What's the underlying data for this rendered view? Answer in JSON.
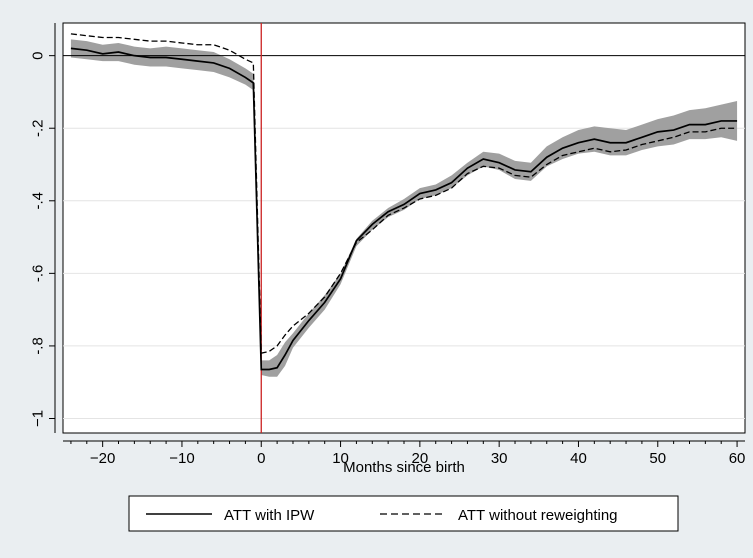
{
  "chart_data": {
    "type": "line",
    "title": "",
    "xlabel": "Months since birth",
    "ylabel": "",
    "xlim": [
      -25,
      61
    ],
    "ylim": [
      -1.04,
      0.09
    ],
    "xticks": [
      -20,
      -10,
      0,
      10,
      20,
      30,
      40,
      50,
      60
    ],
    "xtick_labels": [
      "−20",
      "−10",
      "0",
      "10",
      "20",
      "30",
      "40",
      "50",
      "60"
    ],
    "yticks": [
      0,
      -0.2,
      -0.4,
      -0.6,
      -0.8,
      -1
    ],
    "ytick_labels": [
      "0",
      "-.2",
      "-.4",
      "-.6",
      "-.8",
      "−1"
    ],
    "grid": "horizontal",
    "reference_lines": {
      "y": 0,
      "x": 0,
      "x_color": "#cc2222",
      "y_color": "#000000"
    },
    "legend": {
      "position": "bottom",
      "entries": [
        "ATT with IPW",
        "ATT without reweighting"
      ]
    },
    "colors": {
      "background": "#eaeef1",
      "plot_area": "#ffffff",
      "band": "#a0a0a0",
      "lines": "#000000"
    },
    "ci_band": {
      "x": [
        -24,
        -22,
        -20,
        -18,
        -16,
        -14,
        -12,
        -10,
        -8,
        -6,
        -4,
        -2,
        -1,
        0,
        1,
        2,
        3,
        4,
        6,
        8,
        10,
        12,
        14,
        16,
        18,
        20,
        22,
        24,
        26,
        28,
        30,
        32,
        34,
        36,
        38,
        40,
        42,
        44,
        46,
        48,
        50,
        52,
        54,
        56,
        58,
        60
      ],
      "upper": [
        0.045,
        0.04,
        0.03,
        0.035,
        0.025,
        0.02,
        0.025,
        0.02,
        0.015,
        0.01,
        -0.01,
        -0.035,
        -0.05,
        -0.84,
        -0.84,
        -0.825,
        -0.79,
        -0.765,
        -0.71,
        -0.66,
        -0.6,
        -0.505,
        -0.455,
        -0.42,
        -0.395,
        -0.365,
        -0.355,
        -0.33,
        -0.295,
        -0.265,
        -0.27,
        -0.29,
        -0.295,
        -0.25,
        -0.225,
        -0.205,
        -0.195,
        -0.2,
        -0.205,
        -0.19,
        -0.175,
        -0.165,
        -0.15,
        -0.145,
        -0.135,
        -0.125
      ],
      "lower": [
        -0.005,
        -0.01,
        -0.015,
        -0.015,
        -0.025,
        -0.03,
        -0.03,
        -0.035,
        -0.04,
        -0.045,
        -0.06,
        -0.08,
        -0.095,
        -0.88,
        -0.885,
        -0.885,
        -0.855,
        -0.805,
        -0.75,
        -0.7,
        -0.63,
        -0.525,
        -0.48,
        -0.445,
        -0.425,
        -0.395,
        -0.385,
        -0.365,
        -0.33,
        -0.305,
        -0.315,
        -0.34,
        -0.345,
        -0.305,
        -0.285,
        -0.27,
        -0.265,
        -0.275,
        -0.275,
        -0.26,
        -0.25,
        -0.245,
        -0.23,
        -0.23,
        -0.225,
        -0.235
      ]
    },
    "series": [
      {
        "name": "ATT with IPW",
        "style": "solid",
        "x": [
          -24,
          -22,
          -20,
          -18,
          -16,
          -14,
          -12,
          -10,
          -8,
          -6,
          -4,
          -2,
          -1,
          0,
          1,
          2,
          3,
          4,
          6,
          8,
          10,
          12,
          14,
          16,
          18,
          20,
          22,
          24,
          26,
          28,
          30,
          32,
          34,
          36,
          38,
          40,
          42,
          44,
          46,
          48,
          50,
          52,
          54,
          56,
          58,
          60
        ],
        "y": [
          0.02,
          0.015,
          0.005,
          0.01,
          0.0,
          -0.005,
          -0.005,
          -0.01,
          -0.015,
          -0.02,
          -0.035,
          -0.06,
          -0.075,
          -0.865,
          -0.865,
          -0.86,
          -0.825,
          -0.785,
          -0.73,
          -0.68,
          -0.615,
          -0.51,
          -0.465,
          -0.43,
          -0.41,
          -0.38,
          -0.37,
          -0.35,
          -0.31,
          -0.285,
          -0.295,
          -0.315,
          -0.32,
          -0.28,
          -0.255,
          -0.24,
          -0.23,
          -0.24,
          -0.24,
          -0.225,
          -0.21,
          -0.205,
          -0.19,
          -0.19,
          -0.18,
          -0.18
        ]
      },
      {
        "name": "ATT without reweighting",
        "style": "dashed",
        "x": [
          -24,
          -22,
          -20,
          -18,
          -16,
          -14,
          -12,
          -10,
          -8,
          -6,
          -4,
          -2,
          -1,
          0,
          1,
          2,
          3,
          4,
          6,
          8,
          10,
          12,
          14,
          16,
          18,
          20,
          22,
          24,
          26,
          28,
          30,
          32,
          34,
          36,
          38,
          40,
          42,
          44,
          46,
          48,
          50,
          52,
          54,
          56,
          58,
          60
        ],
        "y": [
          0.06,
          0.055,
          0.05,
          0.05,
          0.045,
          0.04,
          0.04,
          0.035,
          0.03,
          0.03,
          0.015,
          -0.01,
          -0.02,
          -0.82,
          -0.815,
          -0.8,
          -0.77,
          -0.745,
          -0.71,
          -0.665,
          -0.6,
          -0.515,
          -0.48,
          -0.44,
          -0.42,
          -0.395,
          -0.385,
          -0.365,
          -0.325,
          -0.305,
          -0.31,
          -0.33,
          -0.335,
          -0.3,
          -0.275,
          -0.265,
          -0.255,
          -0.265,
          -0.26,
          -0.245,
          -0.235,
          -0.225,
          -0.21,
          -0.21,
          -0.2,
          -0.2
        ]
      }
    ]
  }
}
